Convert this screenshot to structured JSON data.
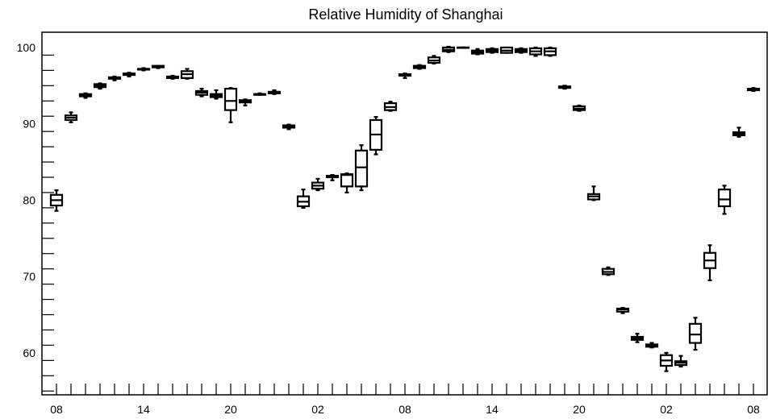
{
  "chart_data": {
    "type": "box",
    "title": "Relative Humidity of Shanghai",
    "xlabel": "",
    "ylabel": "",
    "ylim": [
      54.5,
      102
    ],
    "y_ticks": [
      60,
      70,
      80,
      90,
      100
    ],
    "x_tick_labels": [
      "08",
      "14",
      "20",
      "02",
      "08",
      "14",
      "20",
      "02",
      "08"
    ],
    "x_tick_positions": [
      0,
      6,
      12,
      18,
      24,
      30,
      36,
      42,
      48
    ],
    "boxes": [
      {
        "x": 0,
        "min": 78.6,
        "q1": 79.3,
        "median": 80.0,
        "q3": 80.7,
        "max": 81.3
      },
      {
        "x": 1,
        "min": 90.2,
        "q1": 90.5,
        "median": 90.8,
        "q3": 91.1,
        "max": 91.5
      },
      {
        "x": 2,
        "min": 93.4,
        "q1": 93.6,
        "median": 93.8,
        "q3": 93.9,
        "max": 94.0
      },
      {
        "x": 3,
        "min": 94.6,
        "q1": 94.8,
        "median": 95.0,
        "q3": 95.2,
        "max": 95.3
      },
      {
        "x": 4,
        "min": 95.7,
        "q1": 95.9,
        "median": 96.0,
        "q3": 96.1,
        "max": 96.2
      },
      {
        "x": 5,
        "min": 96.2,
        "q1": 96.4,
        "median": 96.5,
        "q3": 96.6,
        "max": 96.7
      },
      {
        "x": 6,
        "min": 97.0,
        "q1": 97.1,
        "median": 97.2,
        "q3": 97.2,
        "max": 97.3
      },
      {
        "x": 7,
        "min": 97.3,
        "q1": 97.4,
        "median": 97.5,
        "q3": 97.6,
        "max": 97.6
      },
      {
        "x": 8,
        "min": 95.9,
        "q1": 96.0,
        "median": 96.1,
        "q3": 96.2,
        "max": 96.3
      },
      {
        "x": 9,
        "min": 95.9,
        "q1": 96.0,
        "median": 96.5,
        "q3": 96.9,
        "max": 97.2
      },
      {
        "x": 10,
        "min": 93.6,
        "q1": 93.8,
        "median": 94.1,
        "q3": 94.3,
        "max": 94.6
      },
      {
        "x": 11,
        "min": 93.3,
        "q1": 93.5,
        "median": 93.7,
        "q3": 93.9,
        "max": 94.4
      },
      {
        "x": 12,
        "min": 90.2,
        "q1": 91.8,
        "median": 93.0,
        "q3": 94.6,
        "max": 94.7
      },
      {
        "x": 13,
        "min": 92.4,
        "q1": 92.8,
        "median": 93.0,
        "q3": 93.1,
        "max": 93.2
      },
      {
        "x": 14,
        "min": 93.8,
        "q1": 93.8,
        "median": 93.9,
        "q3": 93.9,
        "max": 94.0
      },
      {
        "x": 15,
        "min": 93.9,
        "q1": 94.0,
        "median": 94.1,
        "q3": 94.2,
        "max": 94.4
      },
      {
        "x": 16,
        "min": 89.3,
        "q1": 89.5,
        "median": 89.7,
        "q3": 89.8,
        "max": 89.9
      },
      {
        "x": 17,
        "min": 79.0,
        "q1": 79.2,
        "median": 79.8,
        "q3": 80.5,
        "max": 81.4
      },
      {
        "x": 18,
        "min": 81.3,
        "q1": 81.5,
        "median": 81.9,
        "q3": 82.3,
        "max": 82.8
      },
      {
        "x": 19,
        "min": 82.6,
        "q1": 83.0,
        "median": 83.1,
        "q3": 83.2,
        "max": 83.3
      },
      {
        "x": 20,
        "min": 81.0,
        "q1": 81.8,
        "median": 83.3,
        "q3": 83.4,
        "max": 83.5
      },
      {
        "x": 21,
        "min": 81.3,
        "q1": 81.8,
        "median": 84.3,
        "q3": 86.5,
        "max": 87.2
      },
      {
        "x": 22,
        "min": 86.0,
        "q1": 86.6,
        "median": 88.6,
        "q3": 90.5,
        "max": 90.9
      },
      {
        "x": 23,
        "min": 91.7,
        "q1": 91.8,
        "median": 92.2,
        "q3": 92.7,
        "max": 92.9
      },
      {
        "x": 24,
        "min": 96.0,
        "q1": 96.3,
        "median": 96.4,
        "q3": 96.5,
        "max": 96.6
      },
      {
        "x": 25,
        "min": 97.2,
        "q1": 97.3,
        "median": 97.4,
        "q3": 97.6,
        "max": 97.7
      },
      {
        "x": 26,
        "min": 97.9,
        "q1": 98.0,
        "median": 98.3,
        "q3": 98.7,
        "max": 98.9
      },
      {
        "x": 27,
        "min": 99.4,
        "q1": 99.5,
        "median": 99.7,
        "q3": 100.0,
        "max": 100.1
      },
      {
        "x": 28,
        "min": 100.0,
        "q1": 100.0,
        "median": 100.0,
        "q3": 100.0,
        "max": 100.0
      },
      {
        "x": 29,
        "min": 99.1,
        "q1": 99.2,
        "median": 99.4,
        "q3": 99.6,
        "max": 99.8
      },
      {
        "x": 30,
        "min": 99.3,
        "q1": 99.4,
        "median": 99.6,
        "q3": 99.8,
        "max": 99.9
      },
      {
        "x": 31,
        "min": 99.3,
        "q1": 99.3,
        "median": 99.6,
        "q3": 100.0,
        "max": 100.0
      },
      {
        "x": 32,
        "min": 99.3,
        "q1": 99.4,
        "median": 99.6,
        "q3": 99.8,
        "max": 99.9
      },
      {
        "x": 33,
        "min": 98.9,
        "q1": 99.1,
        "median": 99.5,
        "q3": 99.9,
        "max": 100.0
      },
      {
        "x": 34,
        "min": 98.9,
        "q1": 99.0,
        "median": 99.5,
        "q3": 99.9,
        "max": 100.0
      },
      {
        "x": 35,
        "min": 94.6,
        "q1": 94.7,
        "median": 94.8,
        "q3": 94.9,
        "max": 95.0
      },
      {
        "x": 36,
        "min": 91.7,
        "q1": 91.8,
        "median": 92.0,
        "q3": 92.3,
        "max": 92.4
      },
      {
        "x": 37,
        "min": 80.0,
        "q1": 80.1,
        "median": 80.5,
        "q3": 80.8,
        "max": 81.8
      },
      {
        "x": 38,
        "min": 70.2,
        "q1": 70.3,
        "median": 70.6,
        "q3": 71.0,
        "max": 71.2
      },
      {
        "x": 39,
        "min": 65.2,
        "q1": 65.4,
        "median": 65.7,
        "q3": 65.8,
        "max": 65.9
      },
      {
        "x": 40,
        "min": 61.4,
        "q1": 61.7,
        "median": 61.9,
        "q3": 62.1,
        "max": 62.5
      },
      {
        "x": 41,
        "min": 60.7,
        "q1": 60.8,
        "median": 61.0,
        "q3": 61.1,
        "max": 61.3
      },
      {
        "x": 42,
        "min": 57.6,
        "q1": 58.3,
        "median": 59.0,
        "q3": 59.7,
        "max": 60.0
      },
      {
        "x": 43,
        "min": 58.2,
        "q1": 58.4,
        "median": 58.7,
        "q3": 58.9,
        "max": 59.6
      },
      {
        "x": 44,
        "min": 60.4,
        "q1": 61.3,
        "median": 62.4,
        "q3": 63.8,
        "max": 64.6
      },
      {
        "x": 45,
        "min": 69.5,
        "q1": 71.1,
        "median": 72.1,
        "q3": 73.1,
        "max": 74.1
      },
      {
        "x": 46,
        "min": 78.2,
        "q1": 79.2,
        "median": 80.1,
        "q3": 81.4,
        "max": 81.9
      },
      {
        "x": 47,
        "min": 88.3,
        "q1": 88.5,
        "median": 88.7,
        "q3": 88.9,
        "max": 89.5
      },
      {
        "x": 48,
        "min": 94.3,
        "q1": 94.4,
        "median": 94.5,
        "q3": 94.6,
        "max": 94.7
      }
    ]
  }
}
